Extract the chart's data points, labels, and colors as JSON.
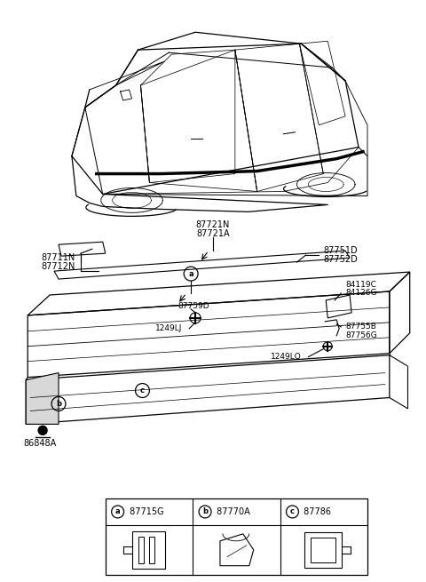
{
  "bg_color": "#ffffff",
  "labels": {
    "87721N": "87721N",
    "87721A": "87721A",
    "87711N": "87711N",
    "87712N": "87712N",
    "87751D": "87751D",
    "87752D": "87752D",
    "84119C": "84119C",
    "84126G": "84126G",
    "87755B": "87755B",
    "87756G": "87756G",
    "87759D": "87759D",
    "1249LJ": "1249LJ",
    "1249LQ": "1249LQ",
    "86848A": "86848A",
    "leg_a_code": "87715G",
    "leg_b_code": "87770A",
    "leg_c_code": "87786"
  }
}
